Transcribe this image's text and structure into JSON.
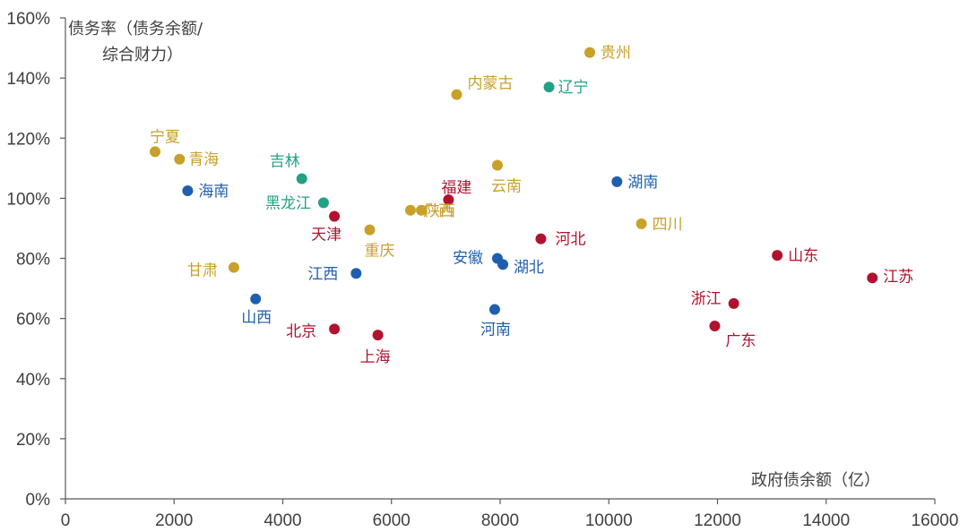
{
  "chart_data": {
    "type": "scatter",
    "title": "",
    "xlabel": "政府债余额（亿）",
    "ylabel_lines": [
      "债务率（债务余额/",
      "综合财力）"
    ],
    "xlim": [
      0,
      16000
    ],
    "ylim": [
      0,
      160
    ],
    "x_ticks": [
      0,
      2000,
      4000,
      6000,
      8000,
      10000,
      12000,
      14000,
      16000
    ],
    "y_ticks": [
      0,
      20,
      40,
      60,
      80,
      100,
      120,
      140,
      160
    ],
    "y_tick_labels": [
      "0%",
      "20%",
      "40%",
      "60%",
      "80%",
      "100%",
      "120%",
      "140%",
      "160%"
    ],
    "grid": false,
    "colors": {
      "gold": "#c8a02a",
      "teal": "#22a187",
      "blue": "#1f5fad",
      "red": "#b1122e"
    },
    "points": [
      {
        "name": "贵州",
        "x": 9650,
        "y": 148.5,
        "group": "gold"
      },
      {
        "name": "辽宁",
        "x": 8900,
        "y": 137,
        "group": "teal"
      },
      {
        "name": "内蒙古",
        "x": 7200,
        "y": 134.5,
        "group": "gold"
      },
      {
        "name": "宁夏",
        "x": 1650,
        "y": 115.5,
        "group": "gold"
      },
      {
        "name": "青海",
        "x": 2100,
        "y": 113,
        "group": "gold"
      },
      {
        "name": "吉林",
        "x": 4350,
        "y": 106.5,
        "group": "teal"
      },
      {
        "name": "云南",
        "x": 7950,
        "y": 111,
        "group": "gold"
      },
      {
        "name": "湖南",
        "x": 10150,
        "y": 105.5,
        "group": "blue"
      },
      {
        "name": "海南",
        "x": 2250,
        "y": 102.5,
        "group": "blue"
      },
      {
        "name": "福建",
        "x": 7050,
        "y": 99.5,
        "group": "red"
      },
      {
        "name": "黑龙江",
        "x": 4750,
        "y": 98.5,
        "group": "teal"
      },
      {
        "name": "广西",
        "x": 6350,
        "y": 96,
        "group": "gold"
      },
      {
        "name": "陕西",
        "x": 6550,
        "y": 96,
        "group": "gold"
      },
      {
        "name": "天津",
        "x": 4950,
        "y": 94,
        "group": "red"
      },
      {
        "name": "重庆",
        "x": 5600,
        "y": 89.5,
        "group": "gold"
      },
      {
        "name": "四川",
        "x": 10600,
        "y": 91.5,
        "group": "gold"
      },
      {
        "name": "河北",
        "x": 8750,
        "y": 86.5,
        "group": "red"
      },
      {
        "name": "山东",
        "x": 13100,
        "y": 81,
        "group": "red"
      },
      {
        "name": "安徽",
        "x": 7950,
        "y": 80,
        "group": "blue"
      },
      {
        "name": "湖北",
        "x": 8050,
        "y": 78,
        "group": "blue"
      },
      {
        "name": "甘肃",
        "x": 3100,
        "y": 77,
        "group": "gold"
      },
      {
        "name": "江西",
        "x": 5350,
        "y": 75,
        "group": "blue"
      },
      {
        "name": "江苏",
        "x": 14850,
        "y": 73.5,
        "group": "red"
      },
      {
        "name": "山西",
        "x": 3500,
        "y": 66.5,
        "group": "blue"
      },
      {
        "name": "浙江",
        "x": 12300,
        "y": 65,
        "group": "red"
      },
      {
        "name": "河南",
        "x": 7900,
        "y": 63,
        "group": "blue"
      },
      {
        "name": "广东",
        "x": 11950,
        "y": 57.5,
        "group": "red"
      },
      {
        "name": "北京",
        "x": 4950,
        "y": 56.5,
        "group": "red"
      },
      {
        "name": "上海",
        "x": 5750,
        "y": 54.5,
        "group": "red"
      }
    ]
  }
}
